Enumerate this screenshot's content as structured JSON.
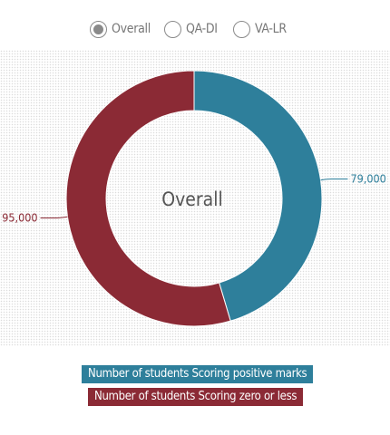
{
  "tabs": [
    {
      "label": "Overall",
      "selected": true
    },
    {
      "label": "QA-DI",
      "selected": false
    },
    {
      "label": "VA-LR",
      "selected": false
    }
  ],
  "colors": {
    "positive": "#2e7f9b",
    "zero_or_less": "#8b2a35",
    "center_text": "#555555"
  },
  "chart_data": {
    "type": "pie",
    "style": "donut",
    "center_label": "Overall",
    "series": [
      {
        "name": "Number of students Scoring positive marks",
        "value": 79000,
        "label": "79,000",
        "color": "#2e7f9b"
      },
      {
        "name": "Number of students Scoring zero or less",
        "value": 95000,
        "label": "95,000",
        "color": "#8b2a35"
      }
    ],
    "legend_position": "bottom-center"
  }
}
